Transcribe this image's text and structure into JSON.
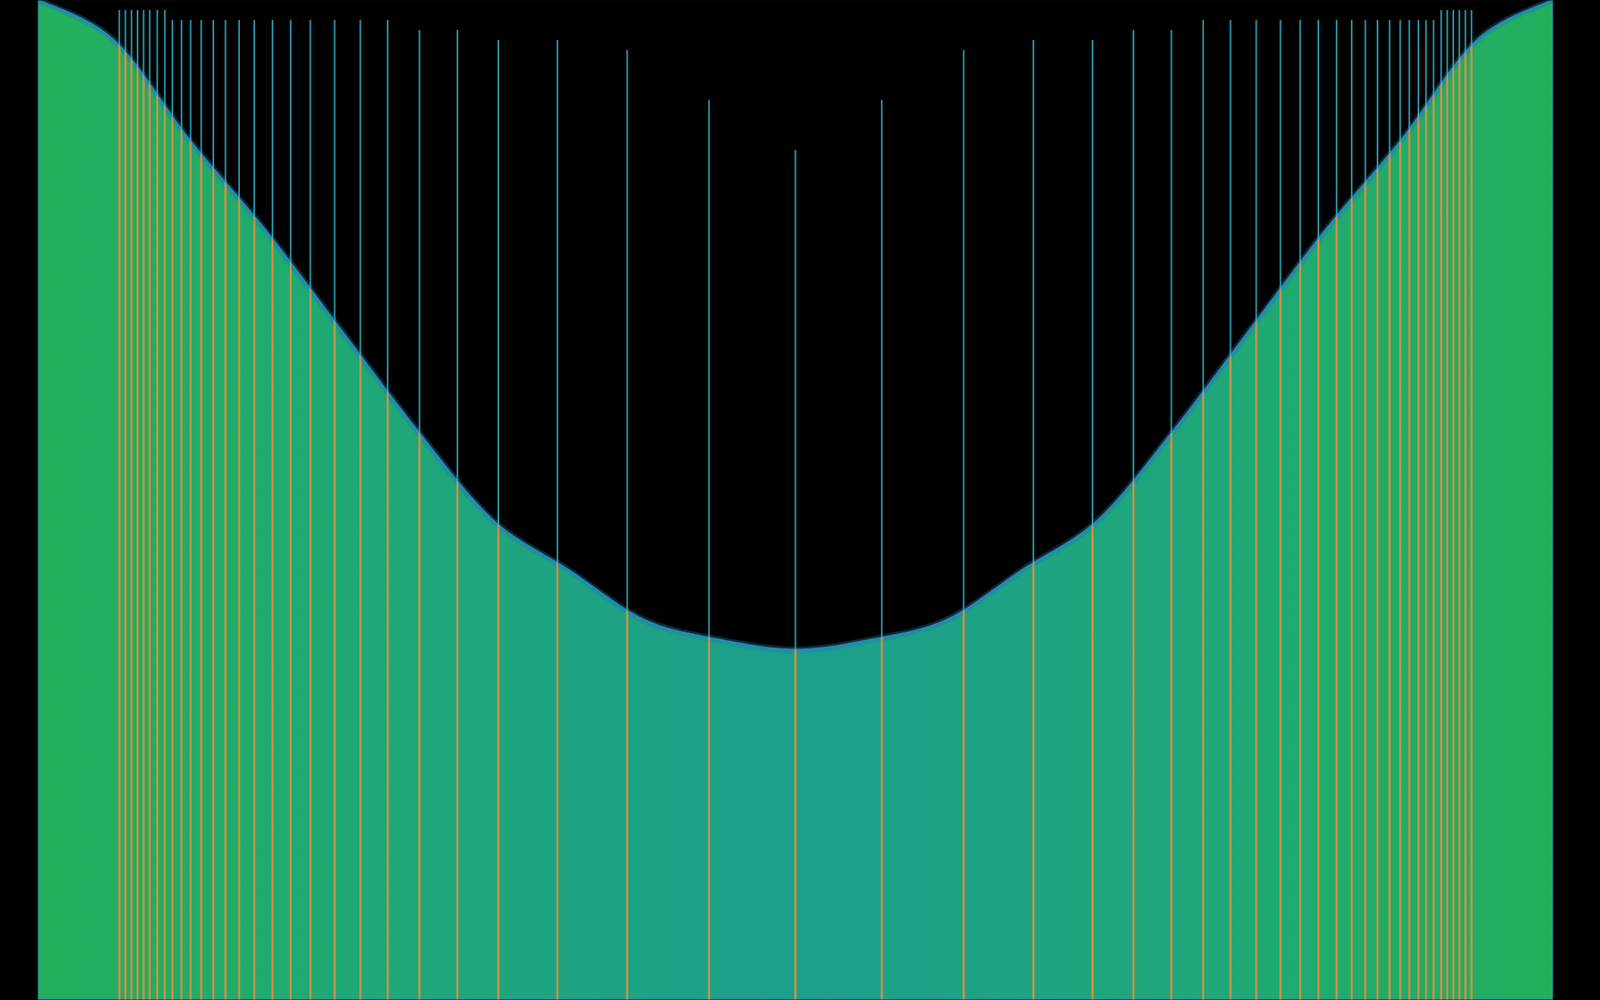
{
  "chart_data": {
    "type": "area",
    "tick_labels": false,
    "grid": false,
    "xlim": [
      0,
      1
    ],
    "ylim": [
      0,
      1
    ],
    "x": [
      0,
      0.05,
      0.1,
      0.15,
      0.2,
      0.25,
      0.3,
      0.35,
      0.4,
      0.45,
      0.5,
      0.55,
      0.6,
      0.65,
      0.7,
      0.75,
      0.8,
      0.85,
      0.9,
      0.95,
      1
    ],
    "series": [
      {
        "type": "area",
        "color": "#1ea57e",
        "values": [
          1.0,
          0.96,
          0.86,
          0.77,
          0.67,
          0.57,
          0.48,
          0.43,
          0.38,
          0.36,
          0.35,
          0.36,
          0.38,
          0.43,
          0.48,
          0.57,
          0.67,
          0.77,
          0.86,
          0.96,
          1.0
        ]
      },
      {
        "type": "bar",
        "color": "#35b6cc",
        "x": [
          0.054,
          0.058,
          0.062,
          0.066,
          0.07,
          0.074,
          0.079,
          0.084,
          0.089,
          0.095,
          0.101,
          0.108,
          0.116,
          0.124,
          0.133,
          0.143,
          0.155,
          0.167,
          0.18,
          0.196,
          0.213,
          0.231,
          0.252,
          0.277,
          0.304,
          0.343,
          0.389,
          0.443,
          0.5,
          0.557,
          0.611,
          0.657,
          0.696,
          0.723,
          0.748,
          0.769,
          0.787,
          0.804,
          0.82,
          0.833,
          0.845,
          0.857,
          0.867,
          0.876,
          0.884,
          0.892,
          0.899,
          0.905,
          0.911,
          0.916,
          0.921,
          0.926,
          0.93,
          0.934,
          0.938,
          0.942,
          0.946
        ],
        "values": [
          0.99,
          0.99,
          0.99,
          0.99,
          0.99,
          0.99,
          0.99,
          0.99,
          0.98,
          0.98,
          0.98,
          0.98,
          0.98,
          0.98,
          0.98,
          0.98,
          0.98,
          0.98,
          0.98,
          0.98,
          0.98,
          0.98,
          0.97,
          0.97,
          0.96,
          0.96,
          0.95,
          0.9,
          0.85,
          0.9,
          0.95,
          0.96,
          0.96,
          0.97,
          0.97,
          0.98,
          0.98,
          0.98,
          0.98,
          0.98,
          0.98,
          0.98,
          0.98,
          0.98,
          0.98,
          0.98,
          0.98,
          0.98,
          0.98,
          0.98,
          0.98,
          0.99,
          0.99,
          0.99,
          0.99,
          0.99,
          0.99
        ]
      }
    ]
  }
}
